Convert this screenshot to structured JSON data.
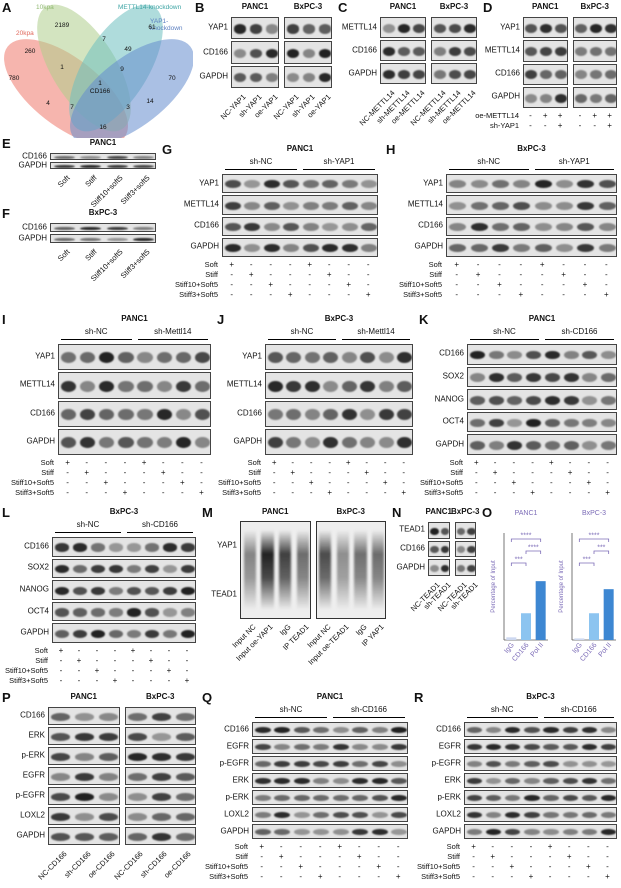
{
  "panels": [
    {
      "letter": "A",
      "sets": [
        "20kpa",
        "10kpa",
        "METTL14-knockdown",
        "YAP1-knockdown"
      ],
      "counts": [
        2189,
        61,
        260,
        7,
        49,
        780,
        1,
        9,
        70,
        1,
        4,
        7,
        3,
        14,
        16
      ],
      "center_label": "CD166"
    },
    {
      "letter": "B",
      "headers": [
        "PANC1",
        "BxPC-3"
      ],
      "rows": [
        "YAP1",
        "CD166",
        "GAPDH"
      ],
      "lanes": [
        "NC-YAP1",
        "sh-YAP1",
        "oe-YAP1",
        "NC-YAP1",
        "sh-YAP1",
        "oe-YAP1"
      ]
    },
    {
      "letter": "C",
      "headers": [
        "PANC1",
        "BxPC-3"
      ],
      "rows": [
        "METTL14",
        "CD166",
        "GAPDH"
      ],
      "lanes": [
        "NC-METTL14",
        "sh-METTL14",
        "oe-METTL14",
        "NC-METTL14",
        "sh-METTL14",
        "oe-METTL14"
      ]
    },
    {
      "letter": "D",
      "headers": [
        "PANC1",
        "BxPC-3"
      ],
      "rows": [
        "YAP1",
        "METTL14",
        "CD166",
        "GAPDH"
      ],
      "conditions": [
        {
          "label": "oe-METTL14",
          "values": [
            "-",
            "+",
            "+",
            "-",
            "+",
            "+"
          ]
        },
        {
          "label": "sh-YAP1",
          "values": [
            "-",
            "-",
            "+",
            "-",
            "-",
            "+"
          ]
        }
      ]
    },
    {
      "letter": "E",
      "headers": [
        "PANC1"
      ],
      "rows": [
        "CD166",
        "GAPDH"
      ],
      "lanes": [
        "Soft",
        "Stiff",
        "Stiff10+soft5",
        "Stiff3+soft5"
      ]
    },
    {
      "letter": "F",
      "headers": [
        "BxPC-3"
      ],
      "rows": [
        "CD166",
        "GAPDH"
      ],
      "lanes": [
        "Soft",
        "Stiff",
        "Stiff10+soft5",
        "Stiff3+soft5"
      ]
    },
    {
      "letter": "G",
      "headers": [
        "PANC1"
      ],
      "groups": [
        "sh-NC",
        "sh-YAP1"
      ],
      "rows": [
        "YAP1",
        "METTL14",
        "CD166",
        "GAPDH"
      ],
      "conditions": [
        {
          "label": "Soft",
          "values": [
            "+",
            "-",
            "-",
            "-",
            "+",
            "-",
            "-",
            "-"
          ]
        },
        {
          "label": "Stiff",
          "values": [
            "-",
            "+",
            "-",
            "-",
            "-",
            "+",
            "-",
            "-"
          ]
        },
        {
          "label": "Stiff10+Soft5",
          "values": [
            "-",
            "-",
            "+",
            "-",
            "-",
            "-",
            "+",
            "-"
          ]
        },
        {
          "label": "Stiff3+Soft5",
          "values": [
            "-",
            "-",
            "-",
            "+",
            "-",
            "-",
            "-",
            "+"
          ]
        }
      ]
    },
    {
      "letter": "H",
      "headers": [
        "BxPC-3"
      ],
      "groups": [
        "sh-NC",
        "sh-YAP1"
      ],
      "rows": [
        "YAP1",
        "METTL14",
        "CD166",
        "GAPDH"
      ],
      "conditions": [
        {
          "label": "Soft",
          "values": [
            "+",
            "-",
            "-",
            "-",
            "+",
            "-",
            "-",
            "-"
          ]
        },
        {
          "label": "Stiff",
          "values": [
            "-",
            "+",
            "-",
            "-",
            "-",
            "+",
            "-",
            "-"
          ]
        },
        {
          "label": "Stiff10+Soft5",
          "values": [
            "-",
            "-",
            "+",
            "-",
            "-",
            "-",
            "+",
            "-"
          ]
        },
        {
          "label": "Stiff3+Soft5",
          "values": [
            "-",
            "-",
            "-",
            "+",
            "-",
            "-",
            "-",
            "+"
          ]
        }
      ]
    },
    {
      "letter": "I",
      "headers": [
        "PANC1"
      ],
      "groups": [
        "sh-NC",
        "sh-Mettl14"
      ],
      "rows": [
        "YAP1",
        "METTL14",
        "CD166",
        "GAPDH"
      ],
      "conditions": [
        {
          "label": "Soft",
          "values": [
            "+",
            "-",
            "-",
            "-",
            "+",
            "-",
            "-",
            "-"
          ]
        },
        {
          "label": "Stiff",
          "values": [
            "-",
            "+",
            "-",
            "-",
            "-",
            "+",
            "-",
            "-"
          ]
        },
        {
          "label": "Stiff10+Soft5",
          "values": [
            "-",
            "-",
            "+",
            "-",
            "-",
            "-",
            "+",
            "-"
          ]
        },
        {
          "label": "Stiff3+Soft5",
          "values": [
            "-",
            "-",
            "-",
            "+",
            "-",
            "-",
            "-",
            "+"
          ]
        }
      ]
    },
    {
      "letter": "J",
      "headers": [
        "BxPC-3"
      ],
      "groups": [
        "sh-NC",
        "sh-Mettl14"
      ],
      "rows": [
        "YAP1",
        "METTL14",
        "CD166",
        "GAPDH"
      ],
      "conditions": [
        {
          "label": "Soft",
          "values": [
            "+",
            "-",
            "-",
            "-",
            "+",
            "-",
            "-",
            "-"
          ]
        },
        {
          "label": "Stiff",
          "values": [
            "-",
            "+",
            "-",
            "-",
            "-",
            "+",
            "-",
            "-"
          ]
        },
        {
          "label": "Stiff10+Soft5",
          "values": [
            "-",
            "-",
            "+",
            "-",
            "-",
            "-",
            "+",
            "-"
          ]
        },
        {
          "label": "Stiff3+Soft5",
          "values": [
            "-",
            "-",
            "-",
            "+",
            "-",
            "-",
            "-",
            "+"
          ]
        }
      ]
    },
    {
      "letter": "K",
      "headers": [
        "PANC1"
      ],
      "groups": [
        "sh-NC",
        "sh-CD166"
      ],
      "rows": [
        "CD166",
        "SOX2",
        "NANOG",
        "OCT4",
        "GAPDH"
      ],
      "conditions": [
        {
          "label": "Soft",
          "values": [
            "+",
            "-",
            "-",
            "-",
            "+",
            "-",
            "-",
            "-"
          ]
        },
        {
          "label": "Stiff",
          "values": [
            "-",
            "+",
            "-",
            "-",
            "-",
            "+",
            "-",
            "-"
          ]
        },
        {
          "label": "Stiff10+Soft5",
          "values": [
            "-",
            "-",
            "+",
            "-",
            "-",
            "-",
            "+",
            "-"
          ]
        },
        {
          "label": "Stiff3+Soft5",
          "values": [
            "-",
            "-",
            "-",
            "+",
            "-",
            "-",
            "-",
            "+"
          ]
        }
      ]
    },
    {
      "letter": "L",
      "headers": [
        "BxPC-3"
      ],
      "groups": [
        "sh-NC",
        "sh-CD166"
      ],
      "rows": [
        "CD166",
        "SOX2",
        "NANOG",
        "OCT4",
        "GAPDH"
      ],
      "conditions": [
        {
          "label": "Soft",
          "values": [
            "+",
            "-",
            "-",
            "-",
            "+",
            "-",
            "-",
            "-"
          ]
        },
        {
          "label": "Stiff",
          "values": [
            "-",
            "+",
            "-",
            "-",
            "-",
            "+",
            "-",
            "-"
          ]
        },
        {
          "label": "Stiff10+Soft5",
          "values": [
            "-",
            "-",
            "+",
            "-",
            "-",
            "-",
            "+",
            "-"
          ]
        },
        {
          "label": "Stiff3+Soft5",
          "values": [
            "-",
            "-",
            "-",
            "+",
            "-",
            "-",
            "-",
            "+"
          ]
        }
      ]
    },
    {
      "letter": "M",
      "headers": [
        "PANC1",
        "BxPC-3"
      ],
      "rows": [
        "YAP1",
        "TEAD1"
      ],
      "lanes": [
        "Input NC",
        "Input oe-YAP1",
        "IgG",
        "IP TEAD1",
        "Input NC",
        "Input oe-TEAD1",
        "IgG",
        "IP YAP1"
      ]
    },
    {
      "letter": "N",
      "headers": [
        "PANC1",
        "BxPC-3"
      ],
      "rows": [
        "TEAD1",
        "CD166",
        "GAPDH"
      ],
      "lanes": [
        "NC-TEAD1",
        "sh-TEAD1",
        "NC-TEAD1",
        "sh-TEAD1"
      ]
    },
    {
      "letter": "O",
      "y_label": "Percentage of Input",
      "charts": [
        {
          "title": "PANC1",
          "categories": [
            "IgG",
            "CD166",
            "Pol II"
          ],
          "values": [
            0.05,
            0.5,
            1.1
          ],
          "colors": [
            "#cdd8f0",
            "#8cc4f0",
            "#3d87d2"
          ],
          "ylim": [
            0,
            2
          ],
          "comparisons": [
            {
              "between": [
                "IgG",
                "Pol II"
              ],
              "label": "****"
            },
            {
              "between": [
                "CD166",
                "Pol II"
              ],
              "label": "****"
            },
            {
              "between": [
                "IgG",
                "CD166"
              ],
              "label": "***"
            }
          ]
        },
        {
          "title": "BxPC-3",
          "categories": [
            "IgG",
            "CD166",
            "Pol II"
          ],
          "values": [
            0.03,
            0.5,
            0.95
          ],
          "colors": [
            "#cdd8f0",
            "#8cc4f0",
            "#3d87d2"
          ],
          "ylim": [
            0,
            2
          ],
          "comparisons": [
            {
              "between": [
                "IgG",
                "Pol II"
              ],
              "label": "****"
            },
            {
              "between": [
                "CD166",
                "Pol II"
              ],
              "label": "***"
            },
            {
              "between": [
                "IgG",
                "CD166"
              ],
              "label": "***"
            }
          ]
        }
      ]
    },
    {
      "letter": "P",
      "headers": [
        "PANC1",
        "BxPC-3"
      ],
      "rows": [
        "CD166",
        "ERK",
        "p-ERK",
        "EGFR",
        "p-EGFR",
        "LOXL2",
        "GAPDH"
      ],
      "lanes": [
        "NC-CD166",
        "sh-CD166",
        "oe-CD166",
        "NC-CD166",
        "sh-CD166",
        "oe-CD166"
      ]
    },
    {
      "letter": "Q",
      "headers": [
        "PANC1"
      ],
      "groups": [
        "sh-NC",
        "sh-CD166"
      ],
      "rows": [
        "CD166",
        "EGFR",
        "p-EGFR",
        "ERK",
        "p-ERK",
        "LOXL2",
        "GAPDH"
      ],
      "conditions": [
        {
          "label": "Soft",
          "values": [
            "+",
            "-",
            "-",
            "-",
            "+",
            "-",
            "-",
            "-"
          ]
        },
        {
          "label": "Stiff",
          "values": [
            "-",
            "+",
            "-",
            "-",
            "-",
            "+",
            "-",
            "-"
          ]
        },
        {
          "label": "Stiff10+Soft5",
          "values": [
            "-",
            "-",
            "+",
            "-",
            "-",
            "-",
            "+",
            "-"
          ]
        },
        {
          "label": "Stiff3+Soft5",
          "values": [
            "-",
            "-",
            "-",
            "+",
            "-",
            "-",
            "-",
            "+"
          ]
        }
      ]
    },
    {
      "letter": "R",
      "headers": [
        "BxPC-3"
      ],
      "groups": [
        "sh-NC",
        "sh-CD166"
      ],
      "rows": [
        "CD166",
        "EGFR",
        "p-EGFR",
        "ERK",
        "p-ERK",
        "LOXL2",
        "GAPDH"
      ],
      "conditions": [
        {
          "label": "Soft",
          "values": [
            "+",
            "-",
            "-",
            "-",
            "+",
            "-",
            "-",
            "-"
          ]
        },
        {
          "label": "Stiff",
          "values": [
            "-",
            "+",
            "-",
            "-",
            "-",
            "+",
            "-",
            "-"
          ]
        },
        {
          "label": "Stiff10+Soft5",
          "values": [
            "-",
            "-",
            "+",
            "-",
            "-",
            "-",
            "+",
            "-"
          ]
        },
        {
          "label": "Stiff3+Soft5",
          "values": [
            "-",
            "-",
            "-",
            "+",
            "-",
            "-",
            "-",
            "+"
          ]
        }
      ]
    }
  ]
}
